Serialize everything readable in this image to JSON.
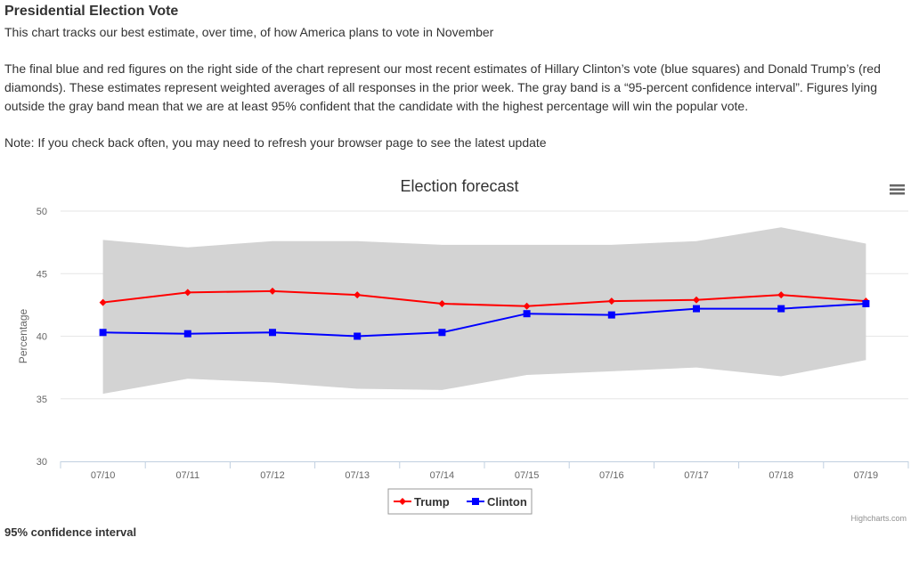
{
  "page": {
    "heading": "Presidential Election Vote",
    "intro": "This chart tracks our best estimate, over time, of how America plans to vote in November",
    "description": "The final blue and red figures on the right side of the chart represent our most recent estimates of Hillary Clinton’s vote (blue squares) and Donald Trump’s (red diamonds). These estimates represent weighted averages of all responses in the prior week. The gray band is a “95-percent confidence interval”. Figures lying outside the gray band mean that we are at least 95% confident that the candidate with the highest percentage will win the popular vote.",
    "note": "Note: If you check back often, you may need to refresh your browser page to see the latest update",
    "footer_label": "95% confidence interval"
  },
  "chart_data": {
    "type": "line",
    "title": "Election forecast",
    "ylabel": "Percentage",
    "xlabel": "",
    "ylim": [
      30,
      50
    ],
    "yticks": [
      30,
      35,
      40,
      45,
      50
    ],
    "grid": true,
    "legend_position": "bottom-center",
    "credit": "Highcharts.com",
    "categories": [
      "07/10",
      "07/11",
      "07/12",
      "07/13",
      "07/14",
      "07/15",
      "07/16",
      "07/17",
      "07/18",
      "07/19"
    ],
    "band": {
      "upper": [
        47.7,
        47.1,
        47.6,
        47.6,
        47.3,
        47.3,
        47.3,
        47.6,
        48.7,
        47.4
      ],
      "lower": [
        35.4,
        36.6,
        36.3,
        35.8,
        35.7,
        36.9,
        37.2,
        37.5,
        36.8,
        38.1
      ],
      "color": "#d3d3d3"
    },
    "series": [
      {
        "name": "Trump",
        "marker": "diamond",
        "color": "#ff0000",
        "values": [
          42.7,
          43.5,
          43.6,
          43.3,
          42.6,
          42.4,
          42.8,
          42.9,
          43.3,
          42.8
        ]
      },
      {
        "name": "Clinton",
        "marker": "square",
        "color": "#0000ff",
        "values": [
          40.3,
          40.2,
          40.3,
          40.0,
          40.3,
          41.8,
          41.7,
          42.2,
          42.2,
          42.6
        ]
      }
    ],
    "menu_icon": "hamburger-menu-icon"
  }
}
